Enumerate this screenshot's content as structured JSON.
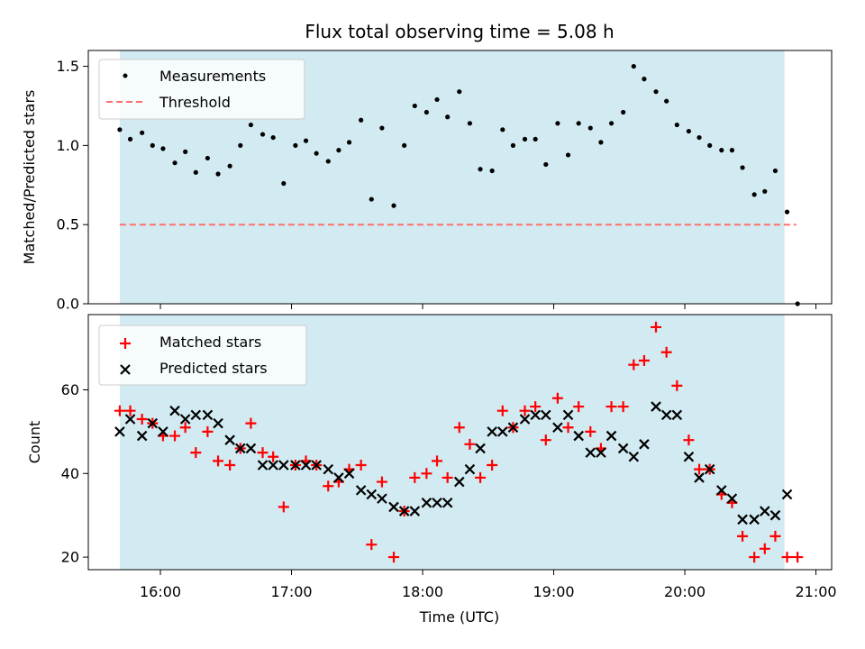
{
  "title": "Flux total observing time = 5.08 h",
  "colors": {
    "observing_span": "#add8e6",
    "threshold": "#ff6f6f",
    "measurements": "#000000",
    "matched": "#ff0000",
    "predicted": "#000000"
  },
  "chart_data": [
    {
      "type": "scatter",
      "ylabel": "Matched/Predicted stars",
      "ylim": [
        0,
        1.6
      ],
      "yticks": [
        0.0,
        0.5,
        1.0,
        1.5
      ],
      "ytick_labels": [
        "0.0",
        "0.5",
        "1.0",
        "1.5"
      ],
      "xlim": [
        15.45,
        21.12
      ],
      "x_unit": "hours UTC",
      "observing_span": [
        15.69,
        20.76
      ],
      "legend": {
        "placement": "top-left",
        "entries": [
          "Measurements",
          "Threshold"
        ]
      },
      "threshold": {
        "name": "Threshold",
        "value": 0.5,
        "x_range": [
          15.69,
          20.85
        ],
        "style": "dashed"
      },
      "series": [
        {
          "name": "Measurements",
          "marker": "dot",
          "x": [
            15.69,
            15.77,
            15.86,
            15.94,
            16.02,
            16.11,
            16.19,
            16.27,
            16.36,
            16.44,
            16.53,
            16.61,
            16.69,
            16.78,
            16.86,
            16.94,
            17.03,
            17.11,
            17.19,
            17.28,
            17.36,
            17.44,
            17.53,
            17.61,
            17.69,
            17.78,
            17.86,
            17.94,
            18.03,
            18.11,
            18.19,
            18.28,
            18.36,
            18.44,
            18.53,
            18.61,
            18.69,
            18.78,
            18.86,
            18.94,
            19.03,
            19.11,
            19.19,
            19.28,
            19.36,
            19.44,
            19.53,
            19.61,
            19.69,
            19.78,
            19.86,
            19.94,
            20.03,
            20.11,
            20.19,
            20.28,
            20.36,
            20.44,
            20.53,
            20.61,
            20.69,
            20.78,
            20.86
          ],
          "y": [
            1.1,
            1.04,
            1.08,
            1.0,
            0.98,
            0.89,
            0.96,
            0.83,
            0.92,
            0.82,
            0.87,
            1.0,
            1.13,
            1.07,
            1.05,
            0.76,
            1.0,
            1.03,
            0.95,
            0.9,
            0.97,
            1.02,
            1.16,
            0.66,
            1.11,
            0.62,
            1.0,
            1.25,
            1.21,
            1.29,
            1.18,
            1.34,
            1.14,
            0.85,
            0.84,
            1.1,
            1.0,
            1.04,
            1.04,
            0.88,
            1.14,
            0.94,
            1.14,
            1.11,
            1.02,
            1.14,
            1.21,
            1.5,
            1.42,
            1.34,
            1.28,
            1.13,
            1.09,
            1.05,
            1.0,
            0.97,
            0.97,
            0.86,
            0.69,
            0.71,
            0.84,
            0.58,
            0.0
          ]
        }
      ]
    },
    {
      "type": "scatter",
      "xlabel": "Time (UTC)",
      "ylabel": "Count",
      "ylim": [
        17,
        78
      ],
      "yticks": [
        20,
        40,
        60
      ],
      "ytick_labels": [
        "20",
        "40",
        "60"
      ],
      "xlim": [
        15.45,
        21.12
      ],
      "xticks": [
        16,
        17,
        18,
        19,
        20,
        21
      ],
      "xtick_labels": [
        "16:00",
        "17:00",
        "18:00",
        "19:00",
        "20:00",
        "21:00"
      ],
      "observing_span": [
        15.69,
        20.76
      ],
      "legend": {
        "placement": "top-left",
        "entries": [
          "Matched stars",
          "Predicted stars"
        ]
      },
      "series": [
        {
          "name": "Matched stars",
          "marker": "plus",
          "x": [
            15.69,
            15.77,
            15.86,
            15.94,
            16.02,
            16.11,
            16.19,
            16.27,
            16.36,
            16.44,
            16.53,
            16.61,
            16.69,
            16.78,
            16.86,
            16.94,
            17.03,
            17.11,
            17.19,
            17.28,
            17.36,
            17.44,
            17.53,
            17.61,
            17.69,
            17.78,
            17.86,
            17.94,
            18.03,
            18.11,
            18.19,
            18.28,
            18.36,
            18.44,
            18.53,
            18.61,
            18.69,
            18.78,
            18.86,
            18.94,
            19.03,
            19.11,
            19.19,
            19.28,
            19.36,
            19.44,
            19.53,
            19.61,
            19.69,
            19.78,
            19.86,
            19.94,
            20.03,
            20.11,
            20.19,
            20.28,
            20.36,
            20.44,
            20.53,
            20.61,
            20.69,
            20.78,
            20.86
          ],
          "y": [
            55,
            55,
            53,
            52,
            49,
            49,
            51,
            45,
            50,
            43,
            42,
            46,
            52,
            45,
            44,
            32,
            42,
            43,
            42,
            37,
            38,
            41,
            42,
            23,
            38,
            20,
            31,
            39,
            40,
            43,
            39,
            51,
            47,
            39,
            42,
            55,
            51,
            55,
            56,
            48,
            58,
            51,
            56,
            50,
            46,
            56,
            56,
            66,
            67,
            75,
            69,
            61,
            48,
            41,
            41,
            35,
            33,
            25,
            20,
            22,
            25,
            20,
            20
          ]
        },
        {
          "name": "Predicted stars",
          "marker": "x",
          "x": [
            15.69,
            15.77,
            15.86,
            15.94,
            16.02,
            16.11,
            16.19,
            16.27,
            16.36,
            16.44,
            16.53,
            16.61,
            16.69,
            16.78,
            16.86,
            16.94,
            17.03,
            17.11,
            17.19,
            17.28,
            17.36,
            17.44,
            17.53,
            17.61,
            17.69,
            17.78,
            17.86,
            17.94,
            18.03,
            18.11,
            18.19,
            18.28,
            18.36,
            18.44,
            18.53,
            18.61,
            18.69,
            18.78,
            18.86,
            18.94,
            19.03,
            19.11,
            19.19,
            19.28,
            19.36,
            19.44,
            19.53,
            19.61,
            19.69,
            19.78,
            19.86,
            19.94,
            20.03,
            20.11,
            20.19,
            20.28,
            20.36,
            20.44,
            20.53,
            20.61,
            20.69,
            20.78
          ],
          "y": [
            50,
            53,
            49,
            52,
            50,
            55,
            53,
            54,
            54,
            52,
            48,
            46,
            46,
            42,
            42,
            42,
            42,
            42,
            42,
            41,
            39,
            40,
            36,
            35,
            34,
            32,
            31,
            31,
            33,
            33,
            33,
            38,
            41,
            46,
            50,
            50,
            51,
            53,
            54,
            54,
            51,
            54,
            49,
            45,
            45,
            49,
            46,
            44,
            47,
            56,
            54,
            54,
            44,
            39,
            41,
            36,
            34,
            29,
            29,
            31,
            30,
            35
          ]
        }
      ]
    }
  ]
}
